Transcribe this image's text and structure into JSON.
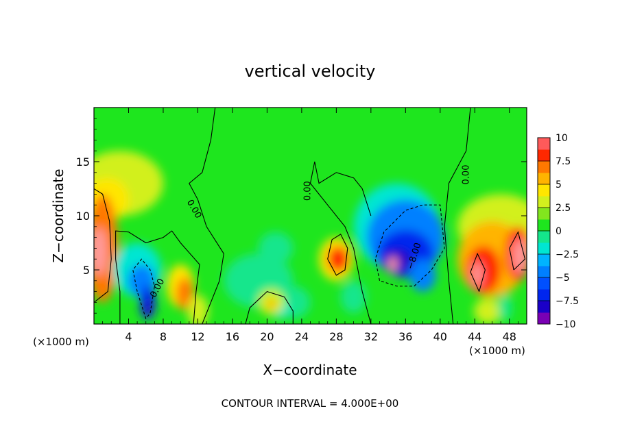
{
  "chart_data": {
    "type": "heatmap",
    "title": "vertical velocity",
    "xlabel": "X−coordinate",
    "ylabel": "Z−coordinate",
    "x_unit_left": "(×1000 m)",
    "x_unit_right": "(×1000 m)",
    "xlim": [
      0,
      50
    ],
    "ylim": [
      0,
      20
    ],
    "x_ticks": [
      4,
      8,
      12,
      16,
      20,
      24,
      28,
      32,
      36,
      40,
      44,
      48
    ],
    "y_ticks": [
      5,
      10,
      15
    ],
    "colorbar": {
      "range": [
        -10,
        10
      ],
      "tick_values": [
        10,
        7.5,
        5,
        2.5,
        0,
        -2.5,
        -5,
        -7.5,
        -10
      ],
      "tick_labels": [
        "10",
        "7.5",
        "5",
        "2.5",
        "0",
        "−2.5",
        "−5",
        "−7.5",
        "−10"
      ]
    },
    "contour_labels": [
      {
        "text": "0.00",
        "x": 11.3,
        "z": 10.5,
        "angle": 60
      },
      {
        "text": "0.00",
        "x": 7.6,
        "z": 3.2,
        "angle": -62
      },
      {
        "text": "0.00",
        "x": 25.0,
        "z": 12.3,
        "angle": -90
      },
      {
        "text": "0.00",
        "x": 43.3,
        "z": 13.8,
        "angle": -90
      },
      {
        "text": "−8.00",
        "x": 37.3,
        "z": 6.2,
        "angle": -72
      }
    ],
    "features": [
      {
        "kind": "max",
        "x": 0.5,
        "z": 6.5,
        "w": 10
      },
      {
        "kind": "max",
        "x": 44.3,
        "z": 4.5,
        "w": 10
      },
      {
        "kind": "max",
        "x": 49.2,
        "z": 6.5,
        "w": 10
      },
      {
        "kind": "max",
        "x": 28.0,
        "z": 6.0,
        "w": 7
      },
      {
        "kind": "max",
        "x": 10.5,
        "z": 3.0,
        "w": 6
      },
      {
        "kind": "max",
        "x": 20.5,
        "z": 1.8,
        "w": 4
      },
      {
        "kind": "min",
        "x": 35.5,
        "z": 6.0,
        "w": -10
      },
      {
        "kind": "min",
        "x": 6.3,
        "z": 1.6,
        "w": -8
      },
      {
        "kind": "min",
        "x": 21.5,
        "z": 1.2,
        "w": -3
      }
    ]
  },
  "footer": {
    "contour_interval": "CONTOUR INTERVAL = 4.000E+00"
  }
}
